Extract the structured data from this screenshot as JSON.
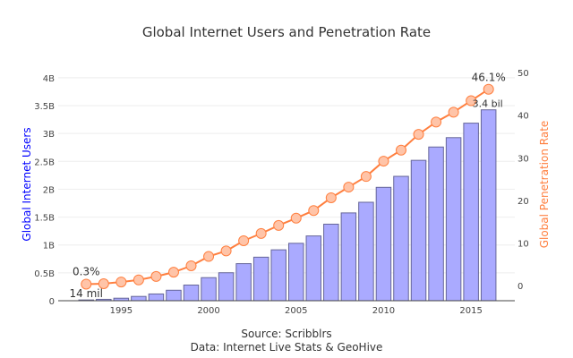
{
  "chart_data": {
    "type": "bar+line",
    "title": "Global Internet Users and Penetration Rate",
    "x": [
      1993,
      1994,
      1995,
      1996,
      1997,
      1998,
      1999,
      2000,
      2001,
      2002,
      2003,
      2004,
      2005,
      2006,
      2007,
      2008,
      2009,
      2010,
      2011,
      2012,
      2013,
      2014,
      2015,
      2016
    ],
    "x_ticks": [
      "1995",
      "2000",
      "2005",
      "2010",
      "2015"
    ],
    "xlim": [
      1991.4,
      2017.5
    ],
    "series": [
      {
        "type": "bar",
        "axis": "left",
        "color": "#aaaaff",
        "values": [
          0.014,
          0.025,
          0.045,
          0.077,
          0.121,
          0.188,
          0.281,
          0.414,
          0.502,
          0.665,
          0.781,
          0.913,
          1.03,
          1.162,
          1.373,
          1.575,
          1.766,
          2.034,
          2.231,
          2.518,
          2.757,
          2.925,
          3.185,
          3.424
        ]
      },
      {
        "type": "line",
        "axis": "right",
        "color": "#ff7f3f",
        "values": [
          0.3,
          0.4,
          0.8,
          1.3,
          2.1,
          3.1,
          4.6,
          6.8,
          8.1,
          10.5,
          12.2,
          14.1,
          15.8,
          17.6,
          20.6,
          23.1,
          25.6,
          29.2,
          31.8,
          35.5,
          38.4,
          40.7,
          43.4,
          46.1
        ]
      }
    ],
    "ylabel_left": "Global Internet Users",
    "ylabel_left_color": "#0000ff",
    "ylim_left": [
      0,
      4.19
    ],
    "y_ticks_left": [
      [
        "0",
        0
      ],
      [
        "0.5B",
        0.5
      ],
      [
        "1B",
        1
      ],
      [
        "1.5B",
        1.5
      ],
      [
        "2B",
        2
      ],
      [
        "2.5B",
        2.5
      ],
      [
        "3B",
        3
      ],
      [
        "3.5B",
        3.5
      ],
      [
        "4B",
        4
      ]
    ],
    "ylabel_right": "Global Penetration Rate",
    "ylabel_right_color": "#ff7f3f",
    "ylim_right": [
      -3.6,
      51.3
    ],
    "y_ticks_right": [
      0,
      10,
      20,
      30,
      40,
      50
    ],
    "annotations": {
      "first_users": "14 mil",
      "first_rate": "0.3%",
      "last_users": "3.4 bil",
      "last_rate": "46.1%"
    },
    "grid": true
  },
  "source_line1": "Source: Scribblrs",
  "source_line2": "Data: Internet Live Stats & GeoHive"
}
